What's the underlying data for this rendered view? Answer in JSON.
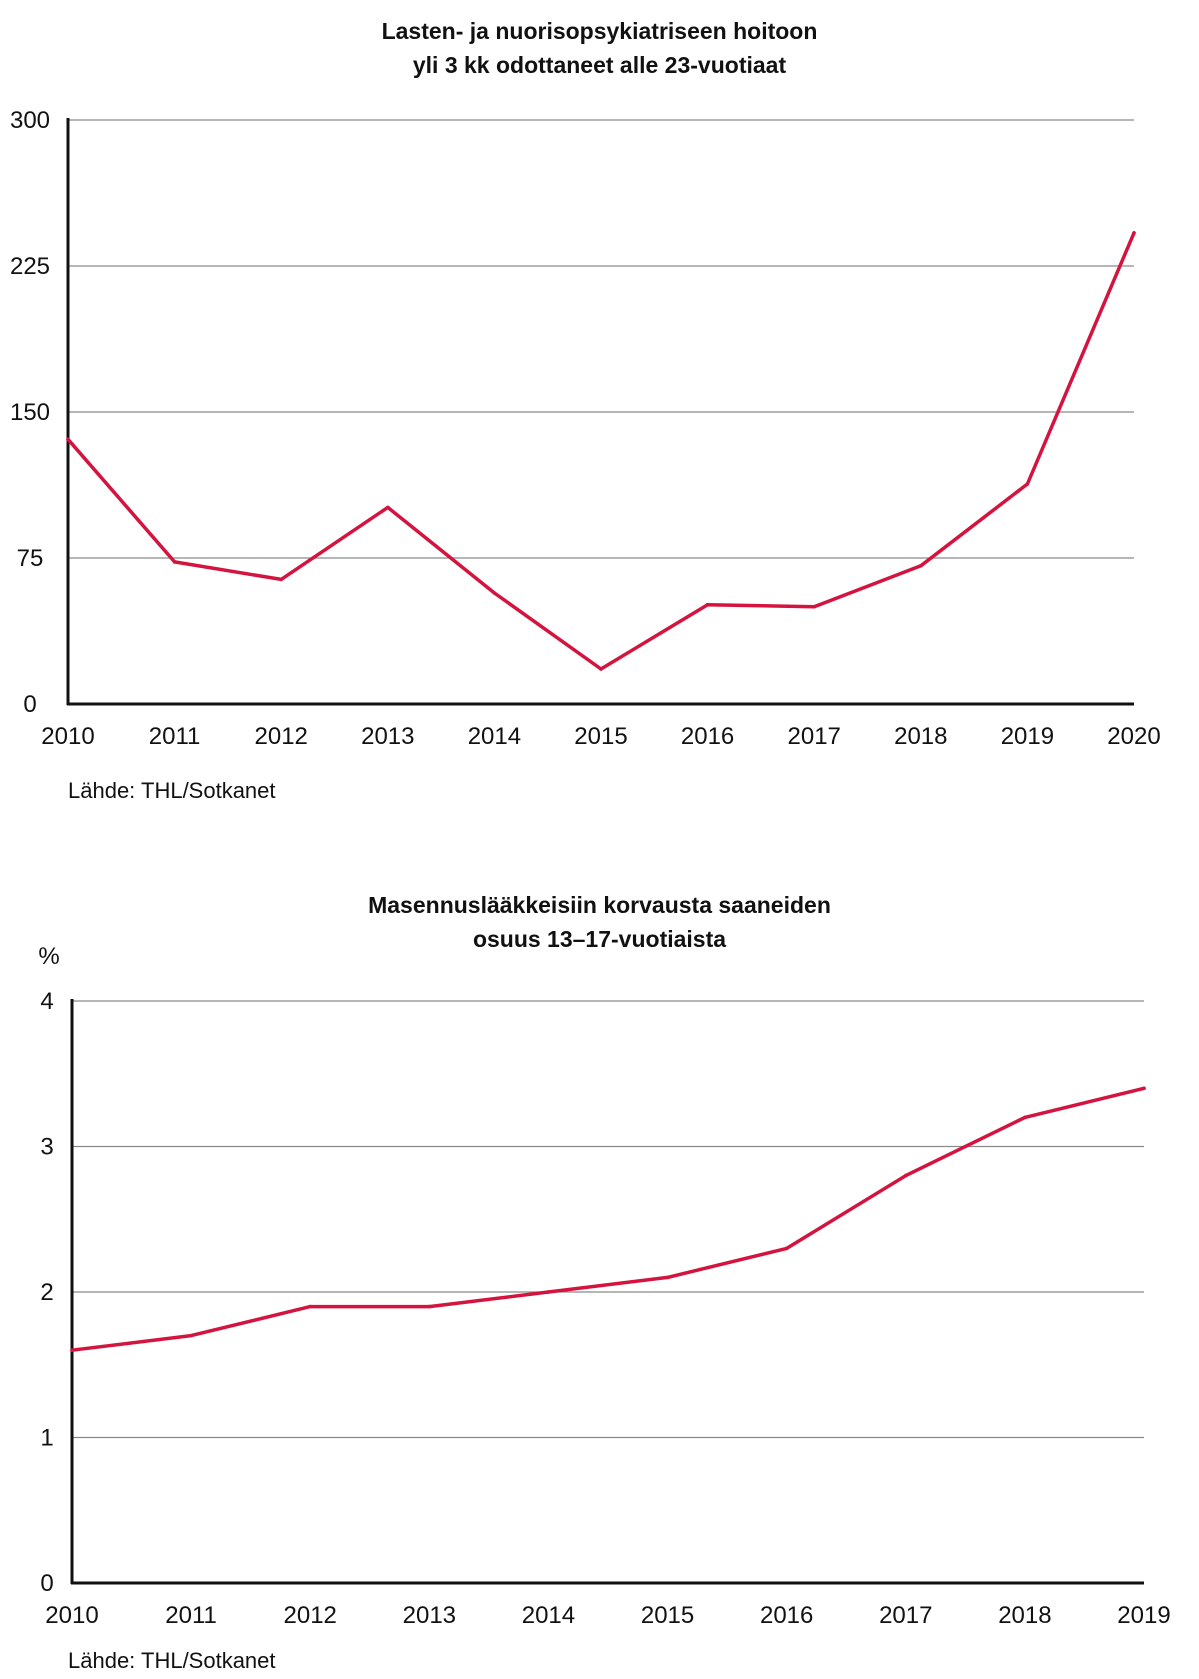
{
  "chart_data": [
    {
      "type": "line",
      "title_line1": "Lasten- ja nuorisopsykiatriseen hoitoon",
      "title_line2": "yli 3 kk odottaneet alle 23-vuotiaat",
      "x": [
        "2010",
        "2011",
        "2012",
        "2013",
        "2014",
        "2015",
        "2016",
        "2017",
        "2018",
        "2019",
        "2020"
      ],
      "values": [
        136,
        73,
        64,
        101,
        57,
        18,
        51,
        50,
        71,
        113,
        242
      ],
      "ylim": [
        0,
        300
      ],
      "yticks": [
        "0",
        "75",
        "150",
        "225",
        "300"
      ],
      "ylabel": "",
      "grid": true,
      "line_color": "#d4143f",
      "source": "Lähde: THL/Sotkanet"
    },
    {
      "type": "line",
      "title_line1": "Masennuslääkkeisiin korvausta saaneiden",
      "title_line2": "osuus 13–17-vuotiaista",
      "x": [
        "2010",
        "2011",
        "2012",
        "2013",
        "2014",
        "2015",
        "2016",
        "2017",
        "2018",
        "2019"
      ],
      "values": [
        1.6,
        1.7,
        1.9,
        1.9,
        2.0,
        2.1,
        2.3,
        2.8,
        3.2,
        3.4
      ],
      "ylim": [
        0,
        4
      ],
      "yticks": [
        "0",
        "1",
        "2",
        "3",
        "4"
      ],
      "ylabel": "%",
      "grid": true,
      "line_color": "#d4143f",
      "source": "Lähde: THL/Sotkanet"
    }
  ]
}
